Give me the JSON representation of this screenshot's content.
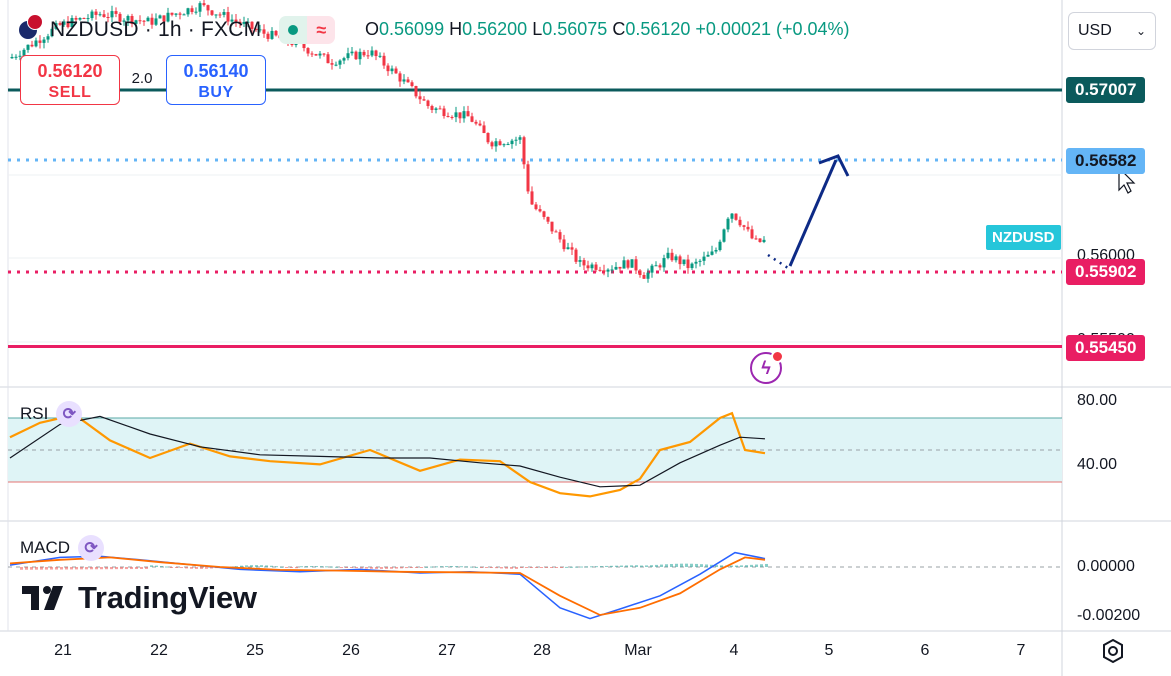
{
  "header": {
    "symbol": "NZDUSD",
    "interval": "1h",
    "exchange": "FXCM",
    "title": "NZDUSD · 1h · FXCM",
    "ohlc": {
      "o_label": "O",
      "o": "0.56099",
      "h_label": "H",
      "h": "0.56200",
      "l_label": "L",
      "l": "0.56075",
      "c_label": "C",
      "c": "0.56120",
      "change": "+0.00021 (+0.04%)"
    }
  },
  "trade": {
    "sell_price": "0.56120",
    "sell_label": "SELL",
    "spread": "2.0",
    "buy_price": "0.56140",
    "buy_label": "BUY"
  },
  "currency_select": {
    "value": "USD"
  },
  "price_axis": {
    "ticks": [
      "0.56000",
      "0.55500"
    ],
    "tags": [
      {
        "value": "0.57007",
        "color": "#0b5a5c"
      },
      {
        "value": "0.56582",
        "color": "#64b5f6"
      },
      {
        "value": "0.55902",
        "color": "#e91e63"
      },
      {
        "value": "0.55450",
        "color": "#e91e63"
      }
    ],
    "symbol_tag": "NZDUSD"
  },
  "levels": {
    "resistance_solid": 0.57007,
    "target_dotted": 0.56582,
    "support_dotted": 0.55902,
    "support_solid": 0.5545
  },
  "rsi": {
    "label": "RSI",
    "ticks": [
      "80.00",
      "40.00"
    ]
  },
  "macd": {
    "label": "MACD",
    "ticks": [
      "0.00000",
      "-0.00200"
    ]
  },
  "time_axis": {
    "labels": [
      "21",
      "22",
      "25",
      "26",
      "27",
      "28",
      "Mar",
      "4",
      "5",
      "6",
      "7"
    ]
  },
  "branding": {
    "logo_text": "TradingView"
  },
  "colors": {
    "up": "#089981",
    "down": "#f23645",
    "rsi_line": "#ff9800",
    "rsi_ma": "#131722",
    "macd_line": "#2962ff",
    "signal_line": "#ff6d00",
    "arrow": "#0d2a86"
  },
  "icons": [
    "nz-us-flag-icon",
    "market-open-dot-icon",
    "wave-icon",
    "chevron-down-icon",
    "indicator-settings-icon",
    "lightning-icon",
    "gear-icon",
    "cursor-icon"
  ]
}
